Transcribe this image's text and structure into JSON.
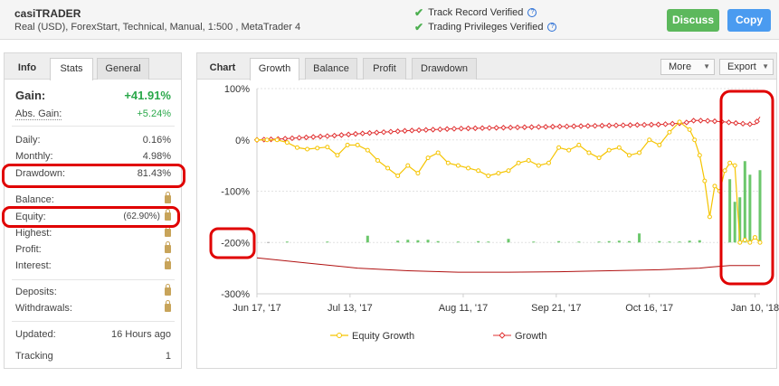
{
  "header": {
    "account_name": "casiTRADER",
    "account_details": "Real (USD), ForexStart, Technical, Manual, 1:500 , MetaTrader 4",
    "verified": [
      {
        "label": "Track Record Verified"
      },
      {
        "label": "Trading Privileges Verified"
      }
    ],
    "help_glyph": "?",
    "discuss_label": "Discuss",
    "copy_label": "Copy"
  },
  "left_panel": {
    "tabs": {
      "info": "Info",
      "stats": "Stats",
      "general": "General"
    },
    "gain_label": "Gain:",
    "gain_value": "+41.91%",
    "abs_gain_label": "Abs. Gain:",
    "abs_gain_value": "+5.24%",
    "daily_label": "Daily:",
    "daily_value": "0.16%",
    "monthly_label": "Monthly:",
    "monthly_value": "4.98%",
    "drawdown_label": "Drawdown:",
    "drawdown_value": "81.43%",
    "balance_label": "Balance:",
    "equity_label": "Equity:",
    "equity_value": "(62.90%)",
    "highest_label": "Highest:",
    "profit_label": "Profit:",
    "interest_label": "Interest:",
    "deposits_label": "Deposits:",
    "withdrawals_label": "Withdrawals:",
    "updated_label": "Updated:",
    "updated_value": "16 Hours ago",
    "tracking_label": "Tracking",
    "tracking_value": "1",
    "lock_icon": "lock-icon"
  },
  "chart_panel": {
    "tabs": {
      "chart": "Chart",
      "growth": "Growth",
      "balance": "Balance",
      "profit": "Profit",
      "drawdown": "Drawdown"
    },
    "more_label": "More",
    "export_label": "Export",
    "dropdown_arrow": "▼"
  },
  "colors": {
    "equity_line": "#f5c400",
    "growth_line": "#e03030",
    "bars": "#6cc76c",
    "balance_line": "#b01010",
    "annotation": "#e00000",
    "gain_green": "#2aa84a"
  },
  "chart_data": {
    "type": "line",
    "title": "",
    "ylim": [
      -300,
      100
    ],
    "y_ticks": [
      "100%",
      "0%",
      "-100%",
      "-200%",
      "-300%"
    ],
    "x_ticks": [
      "Jun 17, '17",
      "Jul 13, '17",
      "Aug 11, '17",
      "Sep 21, '17",
      "Oct 16, '17",
      "Jan 10, '18"
    ],
    "x_range": [
      0,
      100
    ],
    "grid": true,
    "legend_position": "bottom",
    "series": [
      {
        "name": "Equity Growth",
        "x": [
          0,
          2,
          4,
          6,
          8,
          10,
          12,
          14,
          16,
          18,
          20,
          22,
          24,
          26,
          28,
          30,
          32,
          34,
          36,
          38,
          40,
          42,
          44,
          46,
          48,
          50,
          52,
          54,
          56,
          58,
          60,
          62,
          64,
          66,
          68,
          70,
          72,
          74,
          76,
          78,
          80,
          82,
          84,
          86,
          87,
          88,
          89,
          90,
          91,
          92,
          93,
          94,
          95,
          96,
          97,
          98,
          99,
          100
        ],
        "y": [
          0,
          0,
          0,
          -5,
          -15,
          -18,
          -16,
          -14,
          -30,
          -10,
          -10,
          -20,
          -40,
          -55,
          -70,
          -50,
          -65,
          -35,
          -25,
          -45,
          -50,
          -55,
          -60,
          -70,
          -65,
          -60,
          -45,
          -40,
          -50,
          -45,
          -15,
          -20,
          -10,
          -25,
          -35,
          -20,
          -15,
          -30,
          -25,
          0,
          -10,
          15,
          35,
          20,
          0,
          -30,
          -80,
          -150,
          -90,
          -100,
          -60,
          -45,
          -50,
          -200,
          -195,
          -200,
          -190,
          -200
        ]
      },
      {
        "name": "Growth",
        "x": [
          0,
          5,
          10,
          15,
          20,
          25,
          30,
          35,
          40,
          45,
          50,
          55,
          60,
          65,
          70,
          75,
          80,
          85,
          87,
          90,
          93,
          96,
          99,
          100
        ],
        "y": [
          0,
          2,
          5,
          8,
          12,
          15,
          18,
          20,
          22,
          23,
          24,
          25,
          26,
          27,
          28,
          29,
          30,
          33,
          38,
          37,
          35,
          32,
          30,
          45
        ]
      }
    ],
    "bars": {
      "x": [
        6,
        14,
        22,
        28,
        30,
        32,
        34,
        36,
        40,
        44,
        46,
        50,
        55,
        60,
        64,
        68,
        70,
        72,
        74,
        76,
        80,
        82,
        84,
        86,
        88,
        94,
        95,
        96,
        97,
        98,
        100
      ],
      "y": [
        1,
        2,
        15,
        4,
        6,
        5,
        6,
        3,
        2,
        3,
        2,
        8,
        2,
        3,
        2,
        2,
        3,
        4,
        3,
        20,
        3,
        2,
        2,
        4,
        5,
        140,
        90,
        100,
        180,
        150,
        160
      ],
      "min": 0,
      "max": 200
    },
    "balance_line": {
      "x": [
        0,
        10,
        20,
        30,
        40,
        50,
        60,
        70,
        80,
        88,
        90,
        94,
        100
      ],
      "y": [
        -230,
        -240,
        -250,
        -255,
        -258,
        -258,
        -257,
        -255,
        -253,
        -250,
        -248,
        -245,
        -245
      ]
    }
  }
}
